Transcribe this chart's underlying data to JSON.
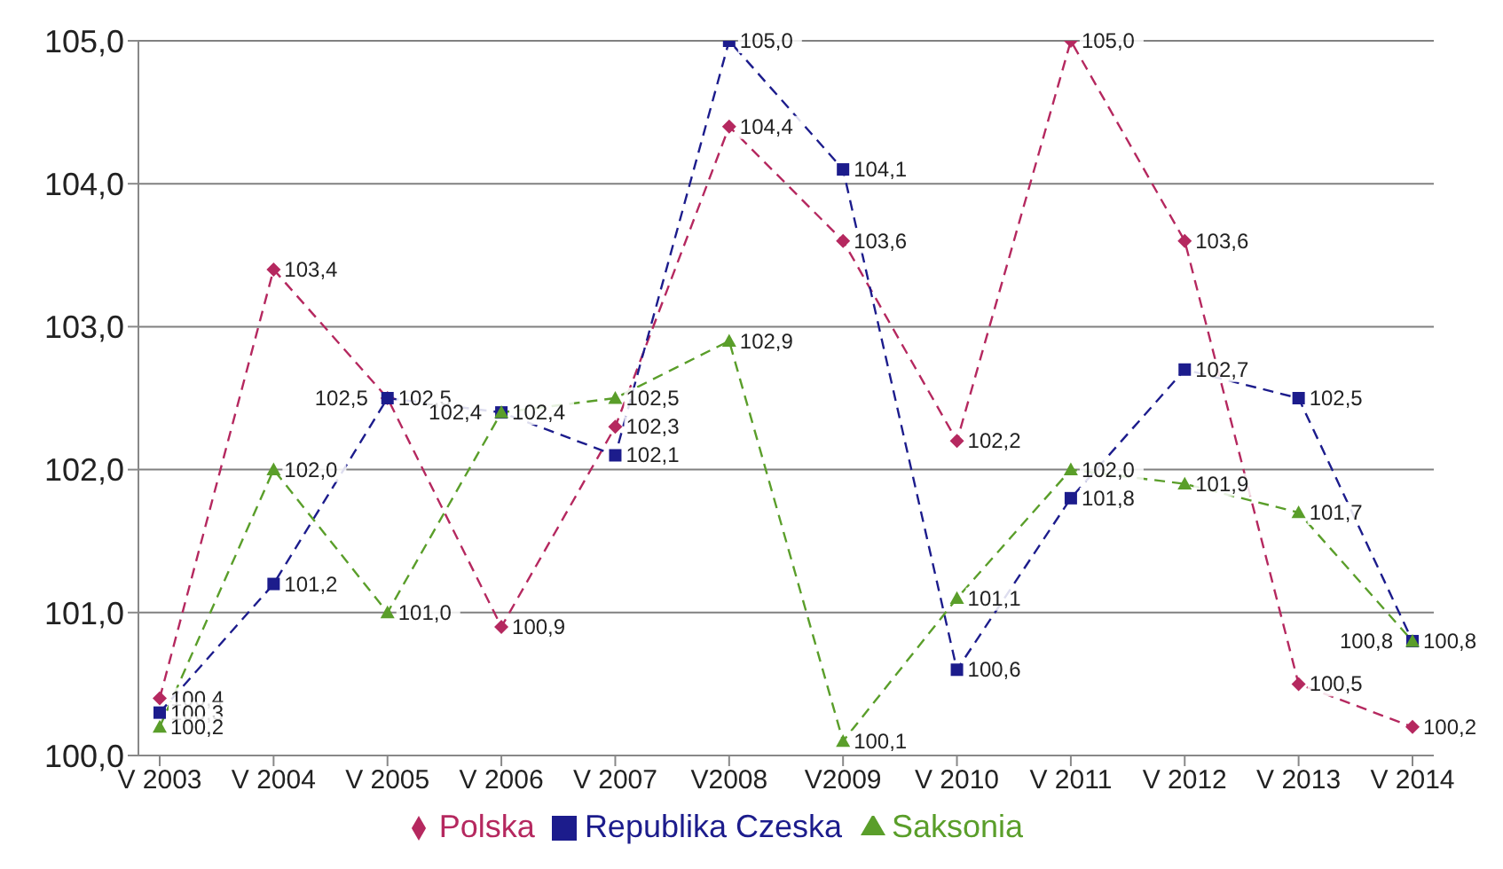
{
  "chart_data": {
    "type": "line",
    "categories": [
      "V 2003",
      "V 2004",
      "V 2005",
      "V 2006",
      "V 2007",
      "V2008",
      "V2009",
      "V 2010",
      "V 2011",
      "V 2012",
      "V 2013",
      "V 2014"
    ],
    "ylim": [
      100,
      105
    ],
    "yticks": [
      {
        "value": 100,
        "label": "100,0"
      },
      {
        "value": 101,
        "label": "101,0"
      },
      {
        "value": 102,
        "label": "102,0"
      },
      {
        "value": 103,
        "label": "103,0"
      },
      {
        "value": 104,
        "label": "104,0"
      },
      {
        "value": 105,
        "label": "105,0"
      }
    ],
    "grid": "y",
    "legend": "bottom",
    "line_style": "dashed",
    "series": [
      {
        "name": "Polska",
        "color": "#b5285f",
        "marker": "diamond",
        "values": [
          100.4,
          103.4,
          102.5,
          100.9,
          102.3,
          104.4,
          103.6,
          102.2,
          105.0,
          103.6,
          100.5,
          100.2
        ],
        "value_labels": [
          "100,4",
          "103,4",
          "102,5",
          "100,9",
          "102,3",
          "104,4",
          "103,6",
          "102,2",
          "105,0",
          "103,6",
          "100,5",
          "100,2"
        ]
      },
      {
        "name": "Republika Czeska",
        "color": "#1c1c8c",
        "marker": "square",
        "values": [
          100.3,
          101.2,
          102.5,
          102.4,
          102.1,
          105.0,
          104.1,
          100.6,
          101.8,
          102.7,
          102.5,
          100.8
        ],
        "value_labels": [
          "100,3",
          "101,2",
          "102,5",
          "102,4",
          "102,1",
          "105,0",
          "104,1",
          "100,6",
          "101,8",
          "102,7",
          "102,5",
          "100,8"
        ]
      },
      {
        "name": "Saksonia",
        "color": "#5a9e2a",
        "marker": "triangle",
        "values": [
          100.2,
          102.0,
          101.0,
          102.4,
          102.5,
          102.9,
          100.1,
          101.1,
          102.0,
          101.9,
          101.7,
          100.8
        ],
        "value_labels": [
          "100,2",
          "102,0",
          "101,0",
          "102,4",
          "102,5",
          "102,9",
          "100,1",
          "101,1",
          "102,0",
          "101,9",
          "101,7",
          "100,8"
        ]
      }
    ]
  }
}
